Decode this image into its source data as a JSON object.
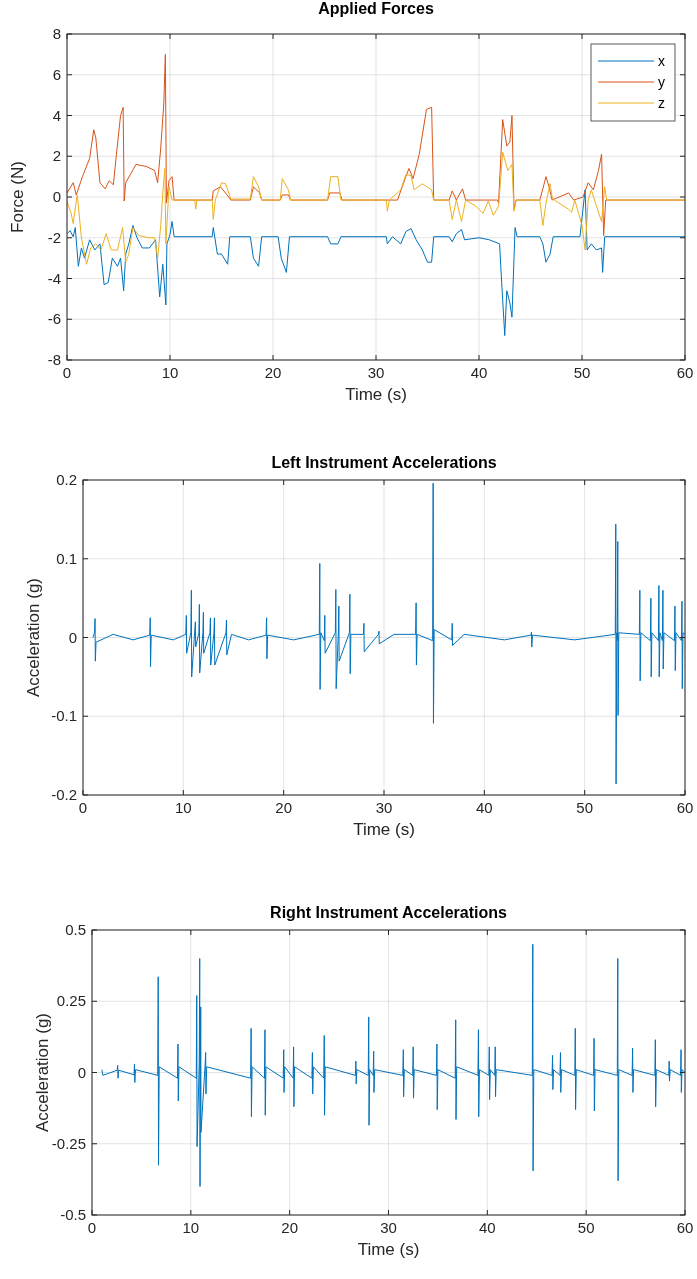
{
  "chart_data": [
    {
      "type": "line",
      "title": "Applied Forces",
      "xlabel": "Time (s)",
      "ylabel": "Force (N)",
      "xlim": [
        0,
        60
      ],
      "xticks": [
        0,
        10,
        20,
        30,
        40,
        50,
        60
      ],
      "ylim": [
        -8,
        8
      ],
      "yticks": [
        -8,
        -6,
        -4,
        -2,
        0,
        2,
        4,
        6,
        8
      ],
      "grid": true,
      "legend": "top right",
      "line_style": "solid",
      "series": [
        {
          "name": "x",
          "color": "#0072bd",
          "x": [
            0,
            0.3,
            0.6,
            0.8,
            1.1,
            1.4,
            1.7,
            2.2,
            2.7,
            3.2,
            3.6,
            4.0,
            4.4,
            4.9,
            5.2,
            5.5,
            5.7,
            6.0,
            6.4,
            6.8,
            7.3,
            8.0,
            8.6,
            9.0,
            9.3,
            9.6,
            9.7,
            10.0,
            10.2,
            10.4,
            14.1,
            14.2,
            14.6,
            15.0,
            15.6,
            15.8,
            17.8,
            18.1,
            18.6,
            18.9,
            20.5,
            20.8,
            21.3,
            21.6,
            25.3,
            25.6,
            26.3,
            26.6,
            31.0,
            31.1,
            31.6,
            32.4,
            32.9,
            33.4,
            33.9,
            34.5,
            35.0,
            35.4,
            35.6,
            37.1,
            37.4,
            37.8,
            38.3,
            38.6,
            40.0,
            41.0,
            42.0,
            42.2,
            42.5,
            42.7,
            43.0,
            43.2,
            43.5,
            43.7,
            45.9,
            46.2,
            46.5,
            46.9,
            47.2,
            49.8,
            50.3,
            50.5,
            50.9,
            51.4,
            51.9,
            52.0,
            52.2,
            60
          ],
          "values": [
            -1.8,
            -1.65,
            -1.95,
            -1.5,
            -3.4,
            -2.5,
            -3.0,
            -2.1,
            -2.6,
            -2.3,
            -4.3,
            -4.2,
            -3.0,
            -3.4,
            -3.0,
            -4.6,
            -2.8,
            -2.3,
            -1.4,
            -2.0,
            -2.5,
            -2.5,
            -2.1,
            -4.9,
            -3.3,
            -5.3,
            -2.3,
            -1.85,
            -1.2,
            -1.95,
            -1.95,
            -1.5,
            -2.8,
            -2.8,
            -3.3,
            -1.95,
            -1.95,
            -3.0,
            -3.4,
            -1.95,
            -1.95,
            -3.0,
            -3.7,
            -1.95,
            -1.95,
            -2.3,
            -2.3,
            -1.95,
            -1.95,
            -2.3,
            -1.95,
            -2.3,
            -1.7,
            -1.55,
            -2.1,
            -2.6,
            -3.2,
            -3.2,
            -1.95,
            -1.95,
            -2.2,
            -1.8,
            -1.6,
            -2.1,
            -2.0,
            -2.1,
            -2.3,
            -4.2,
            -6.8,
            -4.6,
            -5.2,
            -5.9,
            -1.5,
            -1.95,
            -1.95,
            -2.3,
            -3.2,
            -2.8,
            -1.95,
            -1.95,
            0.35,
            -2.6,
            -2.3,
            -2.6,
            -2.5,
            -3.7,
            -1.95,
            -1.95
          ]
        },
        {
          "name": "y",
          "color": "#d95319",
          "x": [
            0,
            0.6,
            0.9,
            1.5,
            2.2,
            2.6,
            2.8,
            3.2,
            3.7,
            4.1,
            4.5,
            4.8,
            5.2,
            5.45,
            5.55,
            5.7,
            6.7,
            7.7,
            8.5,
            8.8,
            9.1,
            9.4,
            9.55,
            9.65,
            9.9,
            10.2,
            10.4,
            14.1,
            14.2,
            14.9,
            15.7,
            15.9,
            17.8,
            18.1,
            18.7,
            18.9,
            20.7,
            20.9,
            21.5,
            21.7,
            25.3,
            25.5,
            26.5,
            26.7,
            32.1,
            32.4,
            32.9,
            33.2,
            33.6,
            34.2,
            34.9,
            35.4,
            35.6,
            37.1,
            37.4,
            37.8,
            38.4,
            38.7,
            41.8,
            41.9,
            42.3,
            42.7,
            43.0,
            43.2,
            43.4,
            43.6,
            45.9,
            46.2,
            46.5,
            46.8,
            47.1,
            48.7,
            49.2,
            50.1,
            50.6,
            51.1,
            51.6,
            51.9,
            52.1,
            52.3,
            60
          ],
          "values": [
            0.2,
            0.7,
            0.1,
            1.0,
            1.9,
            3.3,
            2.9,
            0.7,
            0.4,
            0.8,
            0.6,
            2.1,
            4.0,
            4.4,
            -0.2,
            0.7,
            1.6,
            1.5,
            1.3,
            0.7,
            2.4,
            4.6,
            7.0,
            -0.3,
            0.8,
            1.0,
            -0.15,
            -0.15,
            0.3,
            0.5,
            0.0,
            -0.15,
            -0.15,
            0.5,
            0.2,
            -0.15,
            -0.15,
            0.1,
            0.1,
            -0.15,
            -0.15,
            0.2,
            0.2,
            -0.15,
            -0.15,
            0.3,
            1.0,
            1.4,
            0.9,
            2.1,
            4.3,
            4.4,
            -0.15,
            -0.15,
            0.3,
            -0.15,
            0.4,
            -0.15,
            -0.15,
            -0.3,
            3.8,
            2.5,
            2.7,
            4.0,
            -0.6,
            -0.15,
            -0.15,
            0.4,
            1.0,
            0.5,
            -0.15,
            0.2,
            -0.15,
            0.0,
            0.7,
            0.35,
            1.3,
            2.1,
            -1.9,
            -0.15,
            -0.15
          ]
        },
        {
          "name": "z",
          "color": "#edb120",
          "x": [
            0,
            0.4,
            0.6,
            0.9,
            1.0,
            1.4,
            1.9,
            2.3,
            2.8,
            3.3,
            3.8,
            4.3,
            4.9,
            5.4,
            5.7,
            6.0,
            6.4,
            7.0,
            8.0,
            8.5,
            8.8,
            9.1,
            9.3,
            9.5,
            9.6,
            9.9,
            10.2,
            12.4,
            12.5,
            12.6,
            14.1,
            14.2,
            14.4,
            15.0,
            15.4,
            15.9,
            17.8,
            18.1,
            18.6,
            18.9,
            20.7,
            20.9,
            21.5,
            21.7,
            25.3,
            25.6,
            26.3,
            26.6,
            31.0,
            31.1,
            31.3,
            32.4,
            32.9,
            33.4,
            33.7,
            34.5,
            35.4,
            35.6,
            37.1,
            37.4,
            37.8,
            38.3,
            38.7,
            39.7,
            40.4,
            40.9,
            41.4,
            41.9,
            42.3,
            42.8,
            43.2,
            43.4,
            43.6,
            45.9,
            46.2,
            46.5,
            46.9,
            47.1,
            47.3,
            48.7,
            49.0,
            49.3,
            50.0,
            50.3,
            50.6,
            50.9,
            51.5,
            51.9,
            52.2,
            52.4,
            60
          ],
          "values": [
            -0.2,
            -0.8,
            -1.3,
            -0.2,
            0.1,
            -2.0,
            -3.3,
            -2.5,
            -2.3,
            -2.6,
            -1.8,
            -2.6,
            -2.6,
            -1.5,
            -3.2,
            -2.8,
            -1.5,
            -1.9,
            -2.0,
            -2.0,
            -3.0,
            -1.4,
            0.2,
            1.4,
            -2.3,
            0.5,
            -0.15,
            -0.15,
            -0.6,
            -0.15,
            -0.15,
            -1.1,
            -0.15,
            0.7,
            0.65,
            -0.1,
            -0.1,
            1.0,
            0.5,
            -0.15,
            -0.15,
            0.9,
            0.35,
            -0.15,
            -0.15,
            1.0,
            1.0,
            -0.15,
            -0.15,
            -0.7,
            -0.15,
            0.35,
            1.1,
            1.05,
            0.35,
            0.65,
            0.35,
            -0.15,
            -0.15,
            -1.1,
            -0.15,
            -1.2,
            -0.15,
            -0.45,
            -0.8,
            -0.2,
            -0.9,
            -0.45,
            2.2,
            1.3,
            1.6,
            -0.7,
            -0.15,
            -0.15,
            -1.4,
            -0.3,
            0.65,
            0.0,
            -0.15,
            -0.6,
            -0.75,
            -0.15,
            -1.4,
            -2.6,
            -0.15,
            0.35,
            -0.6,
            -1.2,
            0.5,
            -0.15,
            -0.15
          ]
        }
      ]
    },
    {
      "type": "line",
      "title": "Left Instrument Accelerations",
      "xlabel": "Time (s)",
      "ylabel": "Acceleration (g)",
      "xlim": [
        0,
        60
      ],
      "xticks": [
        0,
        10,
        20,
        30,
        40,
        50,
        60
      ],
      "ylim": [
        -0.2,
        0.2
      ],
      "yticks": [
        -0.2,
        -0.1,
        0,
        0.1,
        0.2
      ],
      "grid": true,
      "line_style": "solid",
      "series": [
        {
          "color": "#0072bd",
          "x": [
            1.0,
            1.15,
            1.2,
            1.23,
            1.3,
            3.0,
            5.0,
            6.65,
            6.7,
            6.73,
            6.8,
            9.0,
            10.25,
            10.3,
            10.33,
            10.75,
            10.8,
            10.83,
            11.2,
            11.23,
            11.55,
            11.6,
            11.63,
            11.95,
            12.0,
            12.03,
            12.65,
            12.7,
            12.73,
            13.05,
            13.1,
            13.13,
            14.25,
            14.3,
            14.33,
            14.8,
            16.5,
            18.25,
            18.3,
            18.33,
            18.4,
            21.0,
            23.55,
            23.6,
            23.63,
            23.7,
            24.05,
            24.1,
            24.13,
            25.15,
            25.2,
            25.23,
            25.45,
            25.5,
            25.53,
            26.55,
            26.6,
            26.63,
            26.7,
            27.95,
            28.0,
            28.03,
            29.45,
            29.5,
            29.53,
            31.0,
            33.15,
            33.2,
            33.23,
            33.3,
            34.85,
            34.9,
            34.93,
            35.0,
            36.75,
            36.8,
            36.83,
            38.0,
            42.0,
            44.65,
            44.7,
            44.73,
            44.8,
            49.0,
            53.05,
            53.1,
            53.13,
            53.2,
            53.25,
            53.3,
            53.33,
            53.4,
            55.45,
            55.5,
            55.53,
            55.6,
            56.55,
            56.6,
            56.63,
            56.7,
            57.35,
            57.4,
            57.43,
            57.5,
            57.75,
            57.8,
            57.83,
            57.9,
            58.95,
            59.0,
            59.03,
            59.1,
            59.65,
            59.7,
            59.73,
            59.8,
            60
          ],
          "values": [
            0,
            0.006,
            0.024,
            -0.03,
            -0.006,
            0.004,
            -0.003,
            0.003,
            0.025,
            -0.037,
            0.003,
            -0.003,
            0.004,
            0.028,
            -0.02,
            0.006,
            0.06,
            -0.05,
            0.02,
            -0.012,
            0.006,
            0.042,
            -0.045,
            0.006,
            0.032,
            -0.02,
            0.006,
            0.025,
            -0.035,
            0.006,
            0.025,
            -0.035,
            0.006,
            0.022,
            -0.022,
            0.004,
            -0.003,
            0.003,
            0.025,
            -0.027,
            0.003,
            -0.003,
            0.004,
            0.094,
            -0.066,
            0.006,
            -0.004,
            0.028,
            -0.02,
            0.006,
            0.061,
            -0.065,
            0.006,
            0.04,
            -0.03,
            0.006,
            0.055,
            -0.046,
            0.004,
            0.004,
            0.018,
            -0.018,
            0.004,
            0.008,
            -0.008,
            0.004,
            0.004,
            0.044,
            -0.035,
            0.004,
            -0.004,
            0.196,
            -0.109,
            0.01,
            -0.003,
            0.018,
            -0.01,
            0.004,
            -0.003,
            0.003,
            0.007,
            -0.012,
            0.003,
            -0.003,
            0.004,
            0.144,
            -0.186,
            0.006,
            -0.004,
            0.122,
            -0.099,
            0.006,
            0.004,
            0.06,
            -0.055,
            0.006,
            -0.004,
            0.05,
            -0.05,
            0.006,
            -0.004,
            0.066,
            -0.05,
            0.006,
            -0.004,
            0.06,
            -0.04,
            0.006,
            -0.004,
            0.04,
            -0.042,
            0.006,
            -0.004,
            0.046,
            -0.065,
            0.006,
            0.004
          ]
        }
      ]
    },
    {
      "type": "line",
      "title": "Right Instrument Accelerations",
      "xlabel": "Time (s)",
      "ylabel": "Acceleration (g)",
      "xlim": [
        0,
        60
      ],
      "xticks": [
        0,
        10,
        20,
        30,
        40,
        50,
        60
      ],
      "ylim": [
        -0.5,
        0.5
      ],
      "yticks": [
        -0.5,
        -0.25,
        0,
        0.25,
        0.5
      ],
      "grid": true,
      "line_style": "solid",
      "series": [
        {
          "color": "#0072bd",
          "x": [
            1.0,
            1.1,
            2.55,
            2.6,
            2.63,
            2.7,
            4.25,
            4.3,
            4.33,
            4.4,
            6.65,
            6.7,
            6.73,
            6.8,
            8.65,
            8.7,
            8.73,
            8.8,
            10.55,
            10.6,
            10.63,
            10.85,
            10.9,
            10.93,
            10.97,
            11.0,
            11.03,
            11.45,
            11.5,
            11.53,
            11.6,
            16.05,
            16.1,
            16.13,
            16.2,
            17.45,
            17.5,
            17.53,
            17.6,
            19.35,
            19.4,
            19.43,
            19.5,
            20.35,
            20.4,
            20.43,
            20.5,
            22.25,
            22.3,
            22.33,
            22.4,
            23.45,
            23.5,
            23.53,
            23.6,
            26.65,
            26.7,
            26.73,
            26.8,
            27.95,
            28.0,
            28.03,
            28.1,
            28.45,
            28.5,
            28.53,
            28.6,
            31.45,
            31.5,
            31.53,
            31.6,
            32.45,
            32.5,
            32.53,
            32.6,
            34.85,
            34.9,
            34.93,
            35.0,
            36.75,
            36.8,
            36.83,
            36.9,
            39.05,
            39.1,
            39.13,
            39.2,
            40.15,
            40.2,
            40.23,
            40.3,
            40.75,
            40.8,
            40.83,
            40.9,
            44.55,
            44.6,
            44.63,
            44.7,
            46.55,
            46.6,
            46.63,
            46.7,
            47.35,
            47.4,
            47.43,
            47.5,
            48.85,
            48.9,
            48.93,
            49.0,
            50.75,
            50.8,
            50.83,
            50.9,
            53.15,
            53.2,
            53.23,
            53.3,
            54.65,
            54.7,
            54.73,
            54.8,
            56.95,
            57.0,
            57.03,
            57.1,
            58.35,
            58.4,
            58.43,
            58.5,
            59.55,
            59.6,
            59.63,
            59.7,
            60
          ],
          "values": [
            0.01,
            -0.01,
            0.008,
            0.025,
            -0.02,
            0.008,
            -0.008,
            0.03,
            -0.035,
            0.01,
            -0.01,
            0.336,
            -0.325,
            0.02,
            -0.02,
            0.1,
            -0.1,
            0.02,
            -0.02,
            0.27,
            -0.26,
            0.03,
            0.4,
            -0.4,
            0.03,
            0.23,
            -0.21,
            0.03,
            0.07,
            -0.075,
            0.02,
            -0.02,
            0.155,
            -0.155,
            0.02,
            -0.02,
            0.15,
            -0.15,
            0.02,
            -0.02,
            0.08,
            -0.07,
            0.02,
            -0.02,
            0.09,
            -0.12,
            0.02,
            -0.02,
            0.07,
            -0.075,
            0.02,
            -0.02,
            0.13,
            -0.15,
            0.02,
            -0.01,
            0.04,
            -0.04,
            0.01,
            -0.01,
            0.195,
            -0.185,
            0.01,
            -0.01,
            0.075,
            -0.07,
            0.01,
            -0.01,
            0.08,
            -0.085,
            0.01,
            -0.01,
            0.09,
            -0.09,
            0.01,
            -0.01,
            0.1,
            -0.13,
            0.01,
            -0.02,
            0.185,
            -0.165,
            0.02,
            -0.01,
            0.15,
            -0.155,
            0.01,
            -0.01,
            0.09,
            -0.095,
            0.01,
            -0.01,
            0.09,
            -0.085,
            0.01,
            -0.01,
            0.45,
            -0.345,
            0.01,
            -0.01,
            0.06,
            -0.06,
            0.01,
            -0.01,
            0.07,
            -0.07,
            0.01,
            -0.01,
            0.155,
            -0.13,
            0.01,
            -0.01,
            0.12,
            -0.135,
            0.01,
            -0.01,
            0.4,
            -0.38,
            0.01,
            -0.01,
            0.085,
            -0.07,
            0.01,
            -0.01,
            0.115,
            -0.12,
            0.01,
            -0.01,
            0.04,
            -0.03,
            0.01,
            -0.01,
            0.08,
            -0.07,
            0.01,
            0
          ]
        }
      ]
    }
  ]
}
